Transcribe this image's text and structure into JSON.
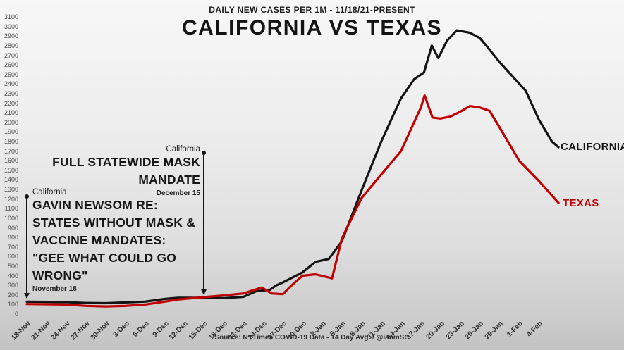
{
  "header": {
    "subtitle": "DAILY NEW CASES PER 1M - 11/18/21-PRESENT",
    "title": "CALIFORNIA VS TEXAS"
  },
  "annotations": {
    "mask_mandate": {
      "state_label": "California",
      "line1": "FULL STATEWIDE MASK",
      "line2": "MANDATE",
      "date": "December 15"
    },
    "newsom_quote": {
      "state_label": "California",
      "lines": [
        "GAVIN NEWSOM RE:",
        "STATES WITHOUT MASK &",
        "VACCINE MANDATES:",
        "\"GEE WHAT COULD GO",
        "WRONG\""
      ],
      "date": "November 18"
    }
  },
  "series_labels": {
    "california": "CALIFORNIA",
    "texas": "TEXAS"
  },
  "colors": {
    "california": "#141414",
    "texas": "#c00000"
  },
  "footer": {
    "source": "Source: NYTimes COVID-19 Data - 14 Day Avg. / @ianmSC"
  },
  "chart_data": {
    "type": "line",
    "title": "CALIFORNIA VS TEXAS",
    "subtitle": "DAILY NEW CASES PER 1M - 11/18/21-PRESENT",
    "grid": false,
    "legend_position": "end-of-line labels",
    "y_axis": {
      "min": 0,
      "max": 3100,
      "step": 100,
      "tick_labels": [
        "0",
        "100",
        "200",
        "300",
        "400",
        "500",
        "600",
        "700",
        "800",
        "900",
        "1000",
        "1100",
        "1200",
        "1300",
        "1400",
        "1500",
        "1600",
        "1700",
        "1800",
        "1900",
        "2000",
        "2100",
        "2200",
        "2300",
        "2400",
        "2500",
        "2600",
        "2700",
        "2800",
        "2900",
        "3000",
        "3100"
      ]
    },
    "x_axis": {
      "tick_interval_days": 3,
      "tick_labels": [
        "18-Nov",
        "21-Nov",
        "24-Nov",
        "27-Nov",
        "30-Nov",
        "3-Dec",
        "6-Dec",
        "9-Dec",
        "12-Dec",
        "15-Dec",
        "18-Dec",
        "21-Dec",
        "24-Dec",
        "27-Dec",
        "30-Dec",
        "2-Jan",
        "5-Jan",
        "8-Jan",
        "11-Jan",
        "14-Jan",
        "17-Jan",
        "20-Jan",
        "23-Jan",
        "26-Jan",
        "29-Jan",
        "1-Feb",
        "4-Feb"
      ]
    },
    "series": [
      {
        "name": "CALIFORNIA",
        "color": "#141414",
        "x_days": [
          0,
          3,
          6,
          9,
          12,
          15,
          18,
          21,
          23,
          27,
          30,
          33,
          35,
          37,
          38,
          39,
          42,
          44,
          46,
          48,
          51,
          54,
          57,
          59,
          60.5,
          61.7,
          62.7,
          64,
          65.5,
          67.5,
          69,
          70,
          72,
          74,
          76,
          78,
          80,
          81
        ],
        "values": [
          130,
          128,
          125,
          116,
          114,
          122,
          130,
          158,
          170,
          170,
          166,
          180,
          240,
          252,
          300,
          330,
          435,
          545,
          575,
          760,
          1290,
          1800,
          2250,
          2450,
          2520,
          2800,
          2670,
          2850,
          2960,
          2935,
          2880,
          2800,
          2630,
          2480,
          2330,
          2030,
          1800,
          1740
        ]
      },
      {
        "name": "TEXAS",
        "color": "#c00000",
        "x_days": [
          0,
          3,
          6,
          9,
          12,
          15,
          18,
          21,
          23,
          27,
          30,
          33,
          35.8,
          37.3,
          39,
          40.5,
          42,
          44,
          45.5,
          46.5,
          48,
          51,
          53,
          57,
          60,
          60.6,
          61.8,
          63,
          64.5,
          66,
          67.5,
          69,
          70.5,
          72,
          75,
          78,
          81
        ],
        "values": [
          105,
          103,
          100,
          86,
          80,
          86,
          100,
          130,
          152,
          177,
          195,
          215,
          278,
          215,
          208,
          310,
          400,
          415,
          390,
          373,
          790,
          1210,
          1375,
          1700,
          2150,
          2280,
          2050,
          2040,
          2060,
          2110,
          2170,
          2155,
          2120,
          1950,
          1600,
          1390,
          1160
        ]
      }
    ],
    "annotation_events": [
      {
        "label": "FULL STATEWIDE MASK MANDATE",
        "state": "California",
        "date": "December 15"
      },
      {
        "label": "GAVIN NEWSOM RE: STATES WITHOUT MASK & VACCINE MANDATES: \"GEE WHAT COULD GO WRONG\"",
        "state": "California",
        "date": "November 18"
      }
    ]
  }
}
